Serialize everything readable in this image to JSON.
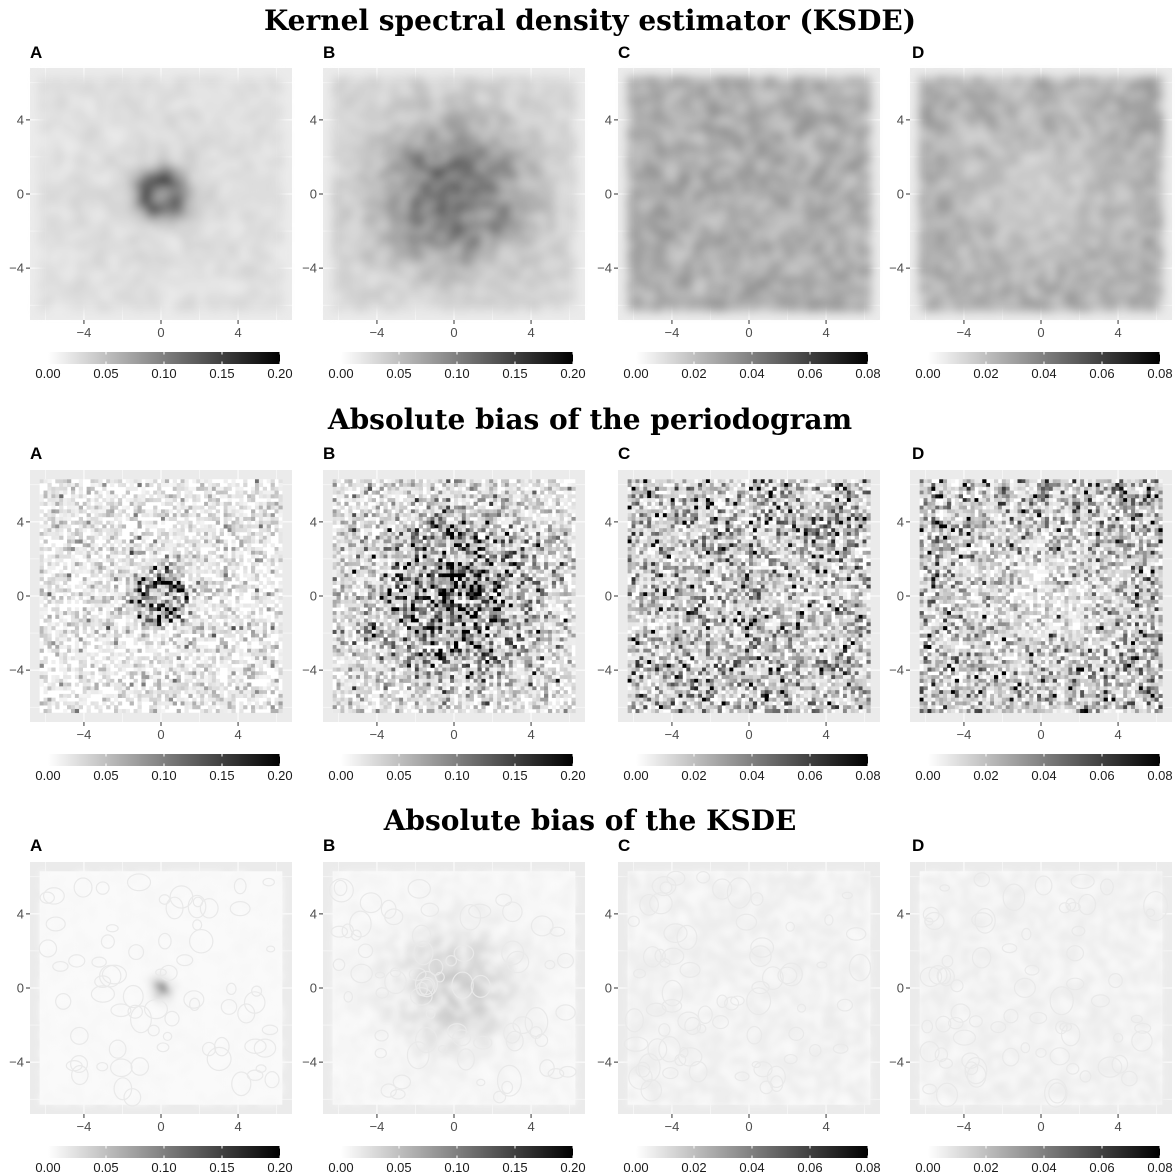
{
  "figure": {
    "rows": [
      {
        "title": "Kernel spectral density estimator (KSDE)",
        "style": "smooth"
      },
      {
        "title": "Absolute bias of the periodogram",
        "style": "pixel"
      },
      {
        "title": "Absolute bias of the KSDE",
        "style": "contour"
      }
    ]
  },
  "chart_data": [
    {
      "row": 1,
      "panel": "A",
      "type": "heatmap",
      "title": "",
      "xlabel": "",
      "ylabel": "",
      "x_ticks": [
        "−4",
        "0",
        "4"
      ],
      "y_ticks": [
        "4",
        "0",
        "−4"
      ],
      "xlim": [
        -6.8,
        6.8
      ],
      "ylim": [
        -6.8,
        6.8
      ],
      "grid": true,
      "colorbar": {
        "min": 0,
        "max": 0.2,
        "ticks": [
          "0.00",
          "0.05",
          "0.10",
          "0.15",
          "0.20"
        ]
      },
      "pattern": {
        "center_peak": 0.11,
        "ring": true,
        "spread": 0.9,
        "background": 0.025
      }
    },
    {
      "row": 1,
      "panel": "B",
      "type": "heatmap",
      "title": "",
      "xlabel": "",
      "ylabel": "",
      "x_ticks": [
        "−4",
        "0",
        "4"
      ],
      "y_ticks": [
        "4",
        "0",
        "−4"
      ],
      "xlim": [
        -6.8,
        6.8
      ],
      "ylim": [
        -6.8,
        6.8
      ],
      "grid": true,
      "colorbar": {
        "min": 0,
        "max": 0.2,
        "ticks": [
          "0.00",
          "0.05",
          "0.10",
          "0.15",
          "0.20"
        ]
      },
      "pattern": {
        "center_peak": 0.09,
        "ring": false,
        "spread": 2.6,
        "background": 0.03
      }
    },
    {
      "row": 1,
      "panel": "C",
      "type": "heatmap",
      "title": "",
      "xlabel": "",
      "ylabel": "",
      "x_ticks": [
        "−4",
        "0",
        "4"
      ],
      "y_ticks": [
        "4",
        "0",
        "−4"
      ],
      "xlim": [
        -6.8,
        6.8
      ],
      "ylim": [
        -6.8,
        6.8
      ],
      "grid": true,
      "colorbar": {
        "min": 0,
        "max": 0.08,
        "ticks": [
          "0.00",
          "0.02",
          "0.04",
          "0.06",
          "0.08"
        ]
      },
      "pattern": {
        "center_peak": 0.0,
        "ring": false,
        "spread": 0,
        "background": 0.026
      }
    },
    {
      "row": 1,
      "panel": "D",
      "type": "heatmap",
      "title": "",
      "xlabel": "",
      "ylabel": "",
      "x_ticks": [
        "−4",
        "0",
        "4"
      ],
      "y_ticks": [
        "4",
        "0",
        "−4"
      ],
      "xlim": [
        -6.8,
        6.8
      ],
      "ylim": [
        -6.8,
        6.8
      ],
      "grid": true,
      "colorbar": {
        "min": 0,
        "max": 0.08,
        "ticks": [
          "0.00",
          "0.02",
          "0.04",
          "0.06",
          "0.08"
        ]
      },
      "pattern": {
        "center_peak": -0.01,
        "ring": false,
        "spread": 3.0,
        "background": 0.026
      }
    },
    {
      "row": 2,
      "panel": "A",
      "type": "heatmap",
      "title": "",
      "xlabel": "",
      "ylabel": "",
      "x_ticks": [
        "−4",
        "0",
        "4"
      ],
      "y_ticks": [
        "4",
        "0",
        "−4"
      ],
      "xlim": [
        -6.8,
        6.8
      ],
      "ylim": [
        -6.8,
        6.8
      ],
      "grid": true,
      "colorbar": {
        "min": 0,
        "max": 0.2,
        "ticks": [
          "0.00",
          "0.05",
          "0.10",
          "0.15",
          "0.20"
        ]
      },
      "pattern": {
        "center_peak": 0.12,
        "ring": true,
        "spread": 0.9,
        "background": 0.02
      }
    },
    {
      "row": 2,
      "panel": "B",
      "type": "heatmap",
      "title": "",
      "xlabel": "",
      "ylabel": "",
      "x_ticks": [
        "−4",
        "0",
        "4"
      ],
      "y_ticks": [
        "4",
        "0",
        "−4"
      ],
      "xlim": [
        -6.8,
        6.8
      ],
      "ylim": [
        -6.8,
        6.8
      ],
      "grid": true,
      "colorbar": {
        "min": 0,
        "max": 0.2,
        "ticks": [
          "0.00",
          "0.05",
          "0.10",
          "0.15",
          "0.20"
        ]
      },
      "pattern": {
        "center_peak": 0.1,
        "ring": false,
        "spread": 2.6,
        "background": 0.025
      }
    },
    {
      "row": 2,
      "panel": "C",
      "type": "heatmap",
      "title": "",
      "xlabel": "",
      "ylabel": "",
      "x_ticks": [
        "−4",
        "0",
        "4"
      ],
      "y_ticks": [
        "4",
        "0",
        "−4"
      ],
      "xlim": [
        -6.8,
        6.8
      ],
      "ylim": [
        -6.8,
        6.8
      ],
      "grid": true,
      "colorbar": {
        "min": 0,
        "max": 0.08,
        "ticks": [
          "0.00",
          "0.02",
          "0.04",
          "0.06",
          "0.08"
        ]
      },
      "pattern": {
        "center_peak": 0.0,
        "ring": false,
        "spread": 0,
        "background": 0.02
      }
    },
    {
      "row": 2,
      "panel": "D",
      "type": "heatmap",
      "title": "",
      "xlabel": "",
      "ylabel": "",
      "x_ticks": [
        "−4",
        "0",
        "4"
      ],
      "y_ticks": [
        "4",
        "0",
        "−4"
      ],
      "xlim": [
        -6.8,
        6.8
      ],
      "ylim": [
        -6.8,
        6.8
      ],
      "grid": true,
      "colorbar": {
        "min": 0,
        "max": 0.08,
        "ticks": [
          "0.00",
          "0.02",
          "0.04",
          "0.06",
          "0.08"
        ]
      },
      "pattern": {
        "center_peak": -0.012,
        "ring": false,
        "spread": 3.0,
        "background": 0.022
      }
    },
    {
      "row": 3,
      "panel": "A",
      "type": "heatmap",
      "title": "",
      "xlabel": "",
      "ylabel": "",
      "x_ticks": [
        "−4",
        "0",
        "4"
      ],
      "y_ticks": [
        "4",
        "0",
        "−4"
      ],
      "xlim": [
        -6.8,
        6.8
      ],
      "ylim": [
        -6.8,
        6.8
      ],
      "grid": true,
      "colorbar": {
        "min": 0,
        "max": 0.2,
        "ticks": [
          "0.00",
          "0.05",
          "0.10",
          "0.15",
          "0.20"
        ]
      },
      "pattern": {
        "center_peak": 0.06,
        "ring": false,
        "spread": 0.35,
        "background": 0.004
      }
    },
    {
      "row": 3,
      "panel": "B",
      "type": "heatmap",
      "title": "",
      "xlabel": "",
      "ylabel": "",
      "x_ticks": [
        "−4",
        "0",
        "4"
      ],
      "y_ticks": [
        "4",
        "0",
        "−4"
      ],
      "xlim": [
        -6.8,
        6.8
      ],
      "ylim": [
        -6.8,
        6.8
      ],
      "grid": true,
      "colorbar": {
        "min": 0,
        "max": 0.2,
        "ticks": [
          "0.00",
          "0.05",
          "0.10",
          "0.15",
          "0.20"
        ]
      },
      "pattern": {
        "center_peak": 0.025,
        "ring": false,
        "spread": 2.2,
        "background": 0.006
      }
    },
    {
      "row": 3,
      "panel": "C",
      "type": "heatmap",
      "title": "",
      "xlabel": "",
      "ylabel": "",
      "x_ticks": [
        "−4",
        "0",
        "4"
      ],
      "y_ticks": [
        "4",
        "0",
        "−4"
      ],
      "xlim": [
        -6.8,
        6.8
      ],
      "ylim": [
        -6.8,
        6.8
      ],
      "grid": true,
      "colorbar": {
        "min": 0,
        "max": 0.08,
        "ticks": [
          "0.00",
          "0.02",
          "0.04",
          "0.06",
          "0.08"
        ]
      },
      "pattern": {
        "center_peak": 0.0,
        "ring": false,
        "spread": 0,
        "background": 0.004
      }
    },
    {
      "row": 3,
      "panel": "D",
      "type": "heatmap",
      "title": "",
      "xlabel": "",
      "ylabel": "",
      "x_ticks": [
        "−4",
        "0",
        "4"
      ],
      "y_ticks": [
        "4",
        "0",
        "−4"
      ],
      "xlim": [
        -6.8,
        6.8
      ],
      "ylim": [
        -6.8,
        6.8
      ],
      "grid": true,
      "colorbar": {
        "min": 0,
        "max": 0.08,
        "ticks": [
          "0.00",
          "0.02",
          "0.04",
          "0.06",
          "0.08"
        ]
      },
      "pattern": {
        "center_peak": 0.0,
        "ring": false,
        "spread": 0,
        "background": 0.004
      }
    }
  ],
  "colors": {
    "panel_bg": "#ebebeb",
    "grid": "#ffffff",
    "scale_low": "#ffffff",
    "scale_high": "#000000"
  }
}
